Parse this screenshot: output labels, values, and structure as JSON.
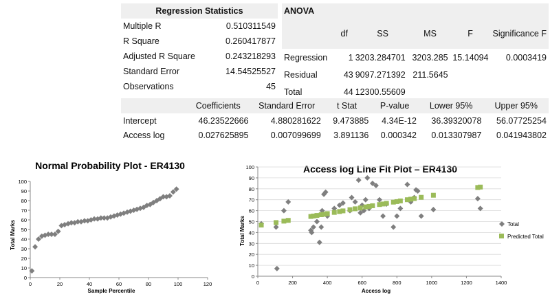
{
  "regression_statistics": {
    "title": "Regression Statistics",
    "rows": [
      {
        "label": "Multiple R",
        "value": "0.510311549"
      },
      {
        "label": "R Square",
        "value": "0.260417877"
      },
      {
        "label": "Adjusted R Square",
        "value": "0.243218293"
      },
      {
        "label": "Standard Error",
        "value": "14.54525527"
      },
      {
        "label": "Observations",
        "value": "45"
      }
    ]
  },
  "anova": {
    "title": "ANOVA",
    "headers": [
      "df",
      "SS",
      "MS",
      "F",
      "Significance F"
    ],
    "rows": [
      {
        "label": "Regression",
        "df": "1",
        "ss": "3203.284701",
        "ms": "3203.285",
        "f": "15.14094",
        "sig": "0.0003419"
      },
      {
        "label": "Residual",
        "df": "43",
        "ss": "9097.271392",
        "ms": "211.5645",
        "f": "",
        "sig": ""
      },
      {
        "label": "Total",
        "df": "44",
        "ss": "12300.55609",
        "ms": "",
        "f": "",
        "sig": ""
      }
    ]
  },
  "coefficients": {
    "headers": [
      "Coefficients",
      "Standard Error",
      "t Stat",
      "P-value",
      "Lower 95%",
      "Upper 95%"
    ],
    "rows": [
      {
        "label": "Intercept",
        "values": [
          "46.23522666",
          "4.880281622",
          "9.473885",
          "4.34E-12",
          "36.39320078",
          "56.07725254"
        ]
      },
      {
        "label": "Access log",
        "values": [
          "0.027625895",
          "0.007099699",
          "3.891136",
          "0.000342",
          "0.013307987",
          "0.041943802"
        ]
      }
    ]
  },
  "colors": {
    "grid": "#d9d9d9",
    "total": "#7f7f7f",
    "predicted": "#9bbb59",
    "npp": "#7f7f7f"
  },
  "chart_data": [
    {
      "type": "scatter",
      "title": "Normal Probability Plot - ER4130",
      "xlabel": "Sample Percentile",
      "ylabel": "Total Marks",
      "xlim": [
        0,
        120
      ],
      "ylim": [
        0,
        100
      ],
      "xticks": [
        0,
        20,
        40,
        60,
        80,
        100,
        120
      ],
      "yticks": [
        0,
        10,
        20,
        30,
        40,
        50,
        60,
        70,
        80,
        90,
        100
      ],
      "series": [
        {
          "x": [
            1.1,
            3.3,
            5.6,
            7.8,
            10.0,
            12.2,
            14.4,
            16.7,
            18.9,
            21.1,
            23.3,
            25.6,
            27.8,
            30.0,
            32.2,
            34.4,
            36.7,
            38.9,
            41.1,
            43.3,
            45.6,
            47.8,
            50.0,
            52.2,
            54.4,
            56.7,
            58.9,
            61.1,
            63.3,
            65.6,
            67.8,
            70.0,
            72.2,
            74.4,
            76.7,
            78.9,
            81.1,
            83.3,
            85.6,
            87.8,
            90.0,
            92.2,
            94.4,
            96.7,
            98.9
          ],
          "y": [
            7,
            32,
            40,
            43,
            44,
            45,
            45,
            45,
            48,
            54,
            55,
            56,
            57,
            57,
            58,
            58,
            59,
            59,
            60,
            61,
            61,
            62,
            62,
            62,
            63,
            64,
            65,
            66,
            67,
            68,
            69,
            70,
            71,
            72,
            73,
            75,
            76,
            78,
            80,
            82,
            84,
            84,
            85,
            89,
            92
          ]
        }
      ]
    },
    {
      "type": "scatter",
      "title": "Access log Line Fit  Plot – ER4130",
      "xlabel": "Access log",
      "ylabel": "Total Marks",
      "xlim": [
        0,
        1400
      ],
      "ylim": [
        0,
        100
      ],
      "xticks": [
        0,
        200,
        400,
        600,
        800,
        1000,
        1200,
        1400
      ],
      "yticks": [
        0,
        10,
        20,
        30,
        40,
        50,
        60,
        70,
        80,
        90,
        100
      ],
      "legend_position": "right",
      "series": [
        {
          "name": "Total",
          "x": [
            20,
            105,
            110,
            150,
            175,
            305,
            310,
            320,
            340,
            355,
            365,
            370,
            380,
            390,
            400,
            440,
            470,
            490,
            530,
            540,
            560,
            580,
            590,
            600,
            610,
            620,
            630,
            640,
            660,
            680,
            700,
            720,
            740,
            780,
            800,
            820,
            860,
            880,
            900,
            910,
            920,
            940,
            1010,
            1265,
            1280
          ],
          "y": [
            48,
            45,
            7,
            60,
            68,
            42,
            40,
            45,
            50,
            31,
            45,
            60,
            75,
            77,
            55,
            62,
            65,
            67,
            60,
            72,
            68,
            88,
            58,
            65,
            60,
            70,
            90,
            62,
            85,
            83,
            70,
            55,
            66,
            45,
            55,
            62,
            84,
            68,
            72,
            79,
            78,
            55,
            61,
            71,
            62
          ]
        },
        {
          "name": "Predicted Total",
          "x": [
            20,
            105,
            150,
            175,
            305,
            320,
            340,
            365,
            380,
            400,
            440,
            470,
            490,
            530,
            560,
            590,
            620,
            640,
            660,
            700,
            720,
            740,
            780,
            800,
            820,
            860,
            880,
            900,
            940,
            1010,
            1265,
            1280
          ],
          "y": [
            46.8,
            49.1,
            50.4,
            51.1,
            54.7,
            55.1,
            55.6,
            56.3,
            56.7,
            57.3,
            58.4,
            59.2,
            59.8,
            60.9,
            61.7,
            62.5,
            63.4,
            63.9,
            64.5,
            65.6,
            66.1,
            66.7,
            67.8,
            68.3,
            68.9,
            70.0,
            70.5,
            71.1,
            72.2,
            74.1,
            81.2,
            81.6
          ]
        }
      ]
    }
  ]
}
